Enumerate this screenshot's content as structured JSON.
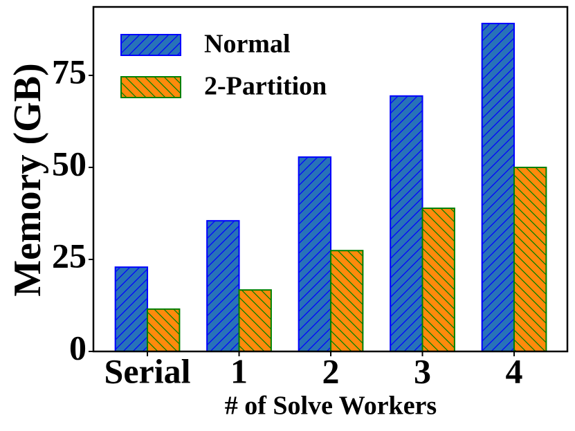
{
  "chart_data": {
    "type": "bar",
    "x_label": "# of Solve Workers",
    "y_label": "Memory (GB)",
    "categories": [
      "Serial",
      "1",
      "2",
      "3",
      "4"
    ],
    "series": [
      {
        "name": "Normal",
        "color": "#2872b8",
        "edgecolor": "#0000ff",
        "hatch": "/",
        "values": [
          22.9,
          35.5,
          52.8,
          69.4,
          89.1
        ]
      },
      {
        "name": "2-Partition",
        "color": "#ff8a0c",
        "edgecolor": "#008000",
        "hatch": "\\",
        "values": [
          11.5,
          16.7,
          27.4,
          38.9,
          50.0
        ]
      }
    ],
    "ylim": [
      0,
      93.6
    ],
    "yticks": [
      0,
      25,
      50,
      75
    ],
    "grid": false,
    "legend": "upper left"
  }
}
